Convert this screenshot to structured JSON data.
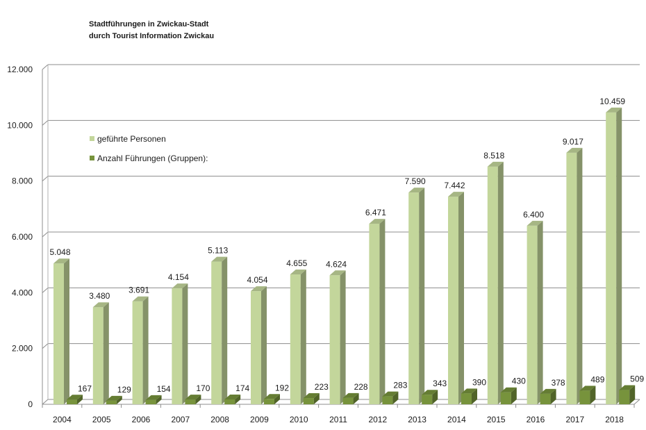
{
  "chart_data": {
    "type": "bar",
    "title": [
      "Stadtführungen in Zwickau-Stadt",
      "durch Tourist Information Zwickau"
    ],
    "xlabel": "",
    "ylabel": "",
    "ylim": [
      0,
      12000
    ],
    "grid": true,
    "legend_position": "top-left",
    "categories": [
      "2004",
      "2005",
      "2006",
      "2007",
      "2008",
      "2009",
      "2010",
      "2011",
      "2012",
      "2013",
      "2014",
      "2015",
      "2016",
      "2017",
      "2018"
    ],
    "y_ticks": [
      0,
      2000,
      4000,
      6000,
      8000,
      10000,
      12000
    ],
    "y_tick_labels": [
      "0",
      "2.000",
      "4.000",
      "6.000",
      "8.000",
      "10.000",
      "12.000"
    ],
    "series": [
      {
        "name": "geführte Personen",
        "color": "#c3d69b",
        "values": [
          5048,
          3480,
          3691,
          4154,
          5113,
          4054,
          4655,
          4624,
          6471,
          7590,
          7442,
          8518,
          6400,
          9017,
          10459
        ],
        "labels": [
          "5.048",
          "3.480",
          "3.691",
          "4.154",
          "5.113",
          "4.054",
          "4.655",
          "4.624",
          "6.471",
          "7.590",
          "7.442",
          "8.518",
          "6.400",
          "9.017",
          "10.459"
        ]
      },
      {
        "name": "Anzahl Führungen (Gruppen):",
        "color": "#77933c",
        "values": [
          167,
          129,
          154,
          170,
          174,
          192,
          223,
          228,
          283,
          343,
          390,
          430,
          378,
          489,
          509
        ],
        "labels": [
          "167",
          "129",
          "154",
          "170",
          "174",
          "192",
          "223",
          "228",
          "283",
          "343",
          "390",
          "430",
          "378",
          "489",
          "509"
        ]
      }
    ]
  }
}
